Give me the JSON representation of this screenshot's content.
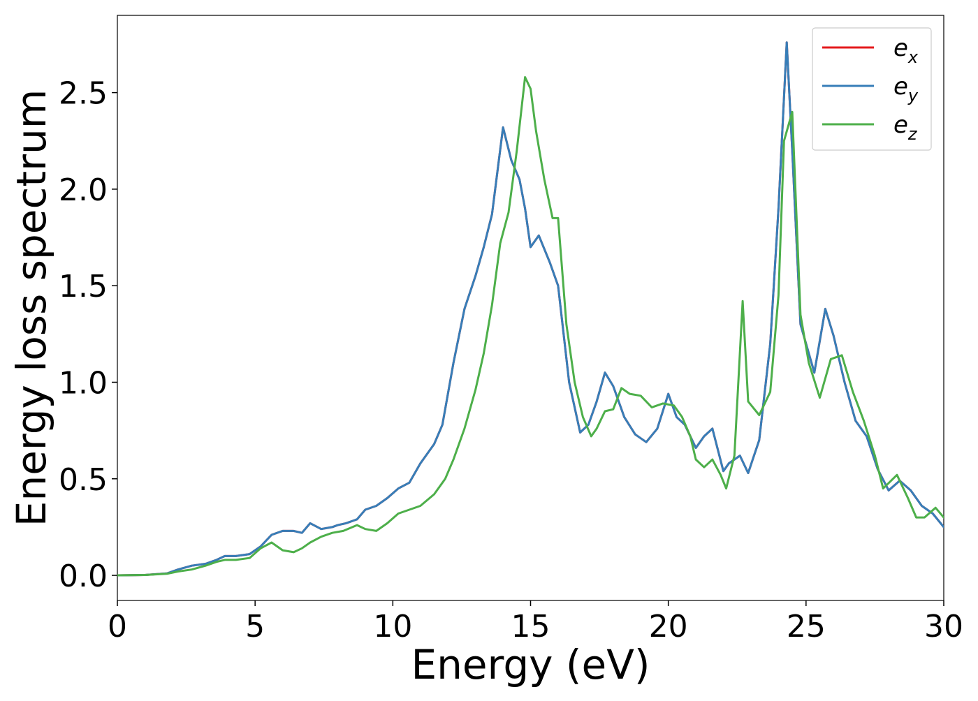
{
  "chart_data": {
    "type": "line",
    "title": "",
    "xlabel": "Energy (eV)",
    "ylabel": "Energy loss spectrum",
    "xlim": [
      0,
      30
    ],
    "ylim": [
      -0.13,
      2.9
    ],
    "xticks": [
      0,
      5,
      10,
      15,
      20,
      25,
      30
    ],
    "xtick_labels": [
      "0",
      "5",
      "10",
      "15",
      "20",
      "25",
      "30"
    ],
    "yticks": [
      0.0,
      0.5,
      1.0,
      1.5,
      2.0,
      2.5
    ],
    "ytick_labels": [
      "0.0",
      "0.5",
      "1.0",
      "1.5",
      "2.0",
      "2.5"
    ],
    "grid": false,
    "legend_position": "top-right",
    "series": [
      {
        "name": "e",
        "subscript": "x",
        "color": "#e41a1c",
        "x": [
          0,
          1,
          1.8,
          2.2,
          2.7,
          3.2,
          3.6,
          3.9,
          4.3,
          4.8,
          5.2,
          5.6,
          6,
          6.4,
          6.7,
          7,
          7.4,
          7.8,
          8,
          8.3,
          8.7,
          9,
          9.4,
          9.8,
          10.2,
          10.6,
          11,
          11.5,
          11.8,
          12.2,
          12.6,
          13,
          13.3,
          13.6,
          14,
          14.3,
          14.6,
          14.8,
          15,
          15.3,
          15.7,
          16,
          16.4,
          16.8,
          17.1,
          17.4,
          17.7,
          18,
          18.4,
          18.8,
          19.2,
          19.6,
          20,
          20.3,
          20.6,
          21,
          21.3,
          21.6,
          22,
          22.2,
          22.6,
          22.9,
          23.3,
          23.7,
          24,
          24.3,
          24.5,
          24.8,
          25.3,
          25.7,
          26,
          26.4,
          26.8,
          27.2,
          27.6,
          28,
          28.4,
          28.8,
          29.2,
          29.6,
          30
        ],
        "y": [
          0,
          0.002,
          0.01,
          0.03,
          0.05,
          0.06,
          0.08,
          0.1,
          0.1,
          0.11,
          0.15,
          0.21,
          0.23,
          0.23,
          0.22,
          0.27,
          0.24,
          0.25,
          0.26,
          0.27,
          0.29,
          0.34,
          0.36,
          0.4,
          0.45,
          0.48,
          0.58,
          0.68,
          0.78,
          1.1,
          1.38,
          1.55,
          1.7,
          1.87,
          2.32,
          2.15,
          2.05,
          1.9,
          1.7,
          1.76,
          1.62,
          1.5,
          1.0,
          0.74,
          0.78,
          0.9,
          1.05,
          0.98,
          0.82,
          0.73,
          0.69,
          0.76,
          0.94,
          0.82,
          0.78,
          0.66,
          0.72,
          0.76,
          0.54,
          0.58,
          0.62,
          0.53,
          0.7,
          1.2,
          1.9,
          2.76,
          2.2,
          1.3,
          1.05,
          1.38,
          1.24,
          1.0,
          0.8,
          0.72,
          0.55,
          0.44,
          0.49,
          0.44,
          0.36,
          0.32,
          0.25
        ]
      },
      {
        "name": "e",
        "subscript": "y",
        "color": "#377eb8",
        "x": [
          0,
          1,
          1.8,
          2.2,
          2.7,
          3.2,
          3.6,
          3.9,
          4.3,
          4.8,
          5.2,
          5.6,
          6,
          6.4,
          6.7,
          7,
          7.4,
          7.8,
          8,
          8.3,
          8.7,
          9,
          9.4,
          9.8,
          10.2,
          10.6,
          11,
          11.5,
          11.8,
          12.2,
          12.6,
          13,
          13.3,
          13.6,
          14,
          14.3,
          14.6,
          14.8,
          15,
          15.3,
          15.7,
          16,
          16.4,
          16.8,
          17.1,
          17.4,
          17.7,
          18,
          18.4,
          18.8,
          19.2,
          19.6,
          20,
          20.3,
          20.6,
          21,
          21.3,
          21.6,
          22,
          22.2,
          22.6,
          22.9,
          23.3,
          23.7,
          24,
          24.3,
          24.5,
          24.8,
          25.3,
          25.7,
          26,
          26.4,
          26.8,
          27.2,
          27.6,
          28,
          28.4,
          28.8,
          29.2,
          29.6,
          30
        ],
        "y": [
          0,
          0.002,
          0.01,
          0.03,
          0.05,
          0.06,
          0.08,
          0.1,
          0.1,
          0.11,
          0.15,
          0.21,
          0.23,
          0.23,
          0.22,
          0.27,
          0.24,
          0.25,
          0.26,
          0.27,
          0.29,
          0.34,
          0.36,
          0.4,
          0.45,
          0.48,
          0.58,
          0.68,
          0.78,
          1.1,
          1.38,
          1.55,
          1.7,
          1.87,
          2.32,
          2.15,
          2.05,
          1.9,
          1.7,
          1.76,
          1.62,
          1.5,
          1.0,
          0.74,
          0.78,
          0.9,
          1.05,
          0.98,
          0.82,
          0.73,
          0.69,
          0.76,
          0.94,
          0.82,
          0.78,
          0.66,
          0.72,
          0.76,
          0.54,
          0.58,
          0.62,
          0.53,
          0.7,
          1.2,
          1.9,
          2.76,
          2.2,
          1.3,
          1.05,
          1.38,
          1.24,
          1.0,
          0.8,
          0.72,
          0.55,
          0.44,
          0.49,
          0.44,
          0.36,
          0.32,
          0.25
        ]
      },
      {
        "name": "e",
        "subscript": "z",
        "color": "#4daf4a",
        "x": [
          0,
          1,
          1.8,
          2.2,
          2.7,
          3.2,
          3.6,
          3.9,
          4.3,
          4.8,
          5.2,
          5.6,
          6,
          6.4,
          6.7,
          7,
          7.4,
          7.8,
          8.2,
          8.7,
          9,
          9.4,
          9.8,
          10.2,
          10.6,
          11,
          11.5,
          11.9,
          12.2,
          12.6,
          13,
          13.3,
          13.6,
          13.9,
          14.2,
          14.5,
          14.8,
          15,
          15.2,
          15.5,
          15.8,
          16,
          16.3,
          16.6,
          16.9,
          17.2,
          17.4,
          17.7,
          18,
          18.3,
          18.6,
          19,
          19.4,
          19.8,
          20.2,
          20.5,
          20.8,
          21,
          21.3,
          21.6,
          21.9,
          22.1,
          22.4,
          22.7,
          22.9,
          23.3,
          23.7,
          24,
          24.2,
          24.5,
          24.8,
          25.1,
          25.5,
          25.9,
          26.3,
          26.7,
          27.1,
          27.5,
          27.8,
          28.3,
          28.7,
          29,
          29.3,
          29.7,
          30
        ],
        "y": [
          0,
          0.002,
          0.008,
          0.02,
          0.03,
          0.05,
          0.07,
          0.08,
          0.08,
          0.09,
          0.14,
          0.17,
          0.13,
          0.12,
          0.14,
          0.17,
          0.2,
          0.22,
          0.23,
          0.26,
          0.24,
          0.23,
          0.27,
          0.32,
          0.34,
          0.36,
          0.42,
          0.5,
          0.6,
          0.76,
          0.96,
          1.15,
          1.4,
          1.72,
          1.88,
          2.2,
          2.58,
          2.52,
          2.3,
          2.05,
          1.85,
          1.85,
          1.3,
          1.0,
          0.82,
          0.72,
          0.76,
          0.85,
          0.86,
          0.97,
          0.94,
          0.93,
          0.87,
          0.89,
          0.88,
          0.82,
          0.72,
          0.6,
          0.56,
          0.6,
          0.52,
          0.45,
          0.62,
          1.42,
          0.9,
          0.83,
          0.95,
          1.45,
          2.25,
          2.4,
          1.35,
          1.1,
          0.92,
          1.12,
          1.14,
          0.95,
          0.8,
          0.62,
          0.45,
          0.52,
          0.4,
          0.3,
          0.3,
          0.35,
          0.3
        ]
      }
    ]
  }
}
